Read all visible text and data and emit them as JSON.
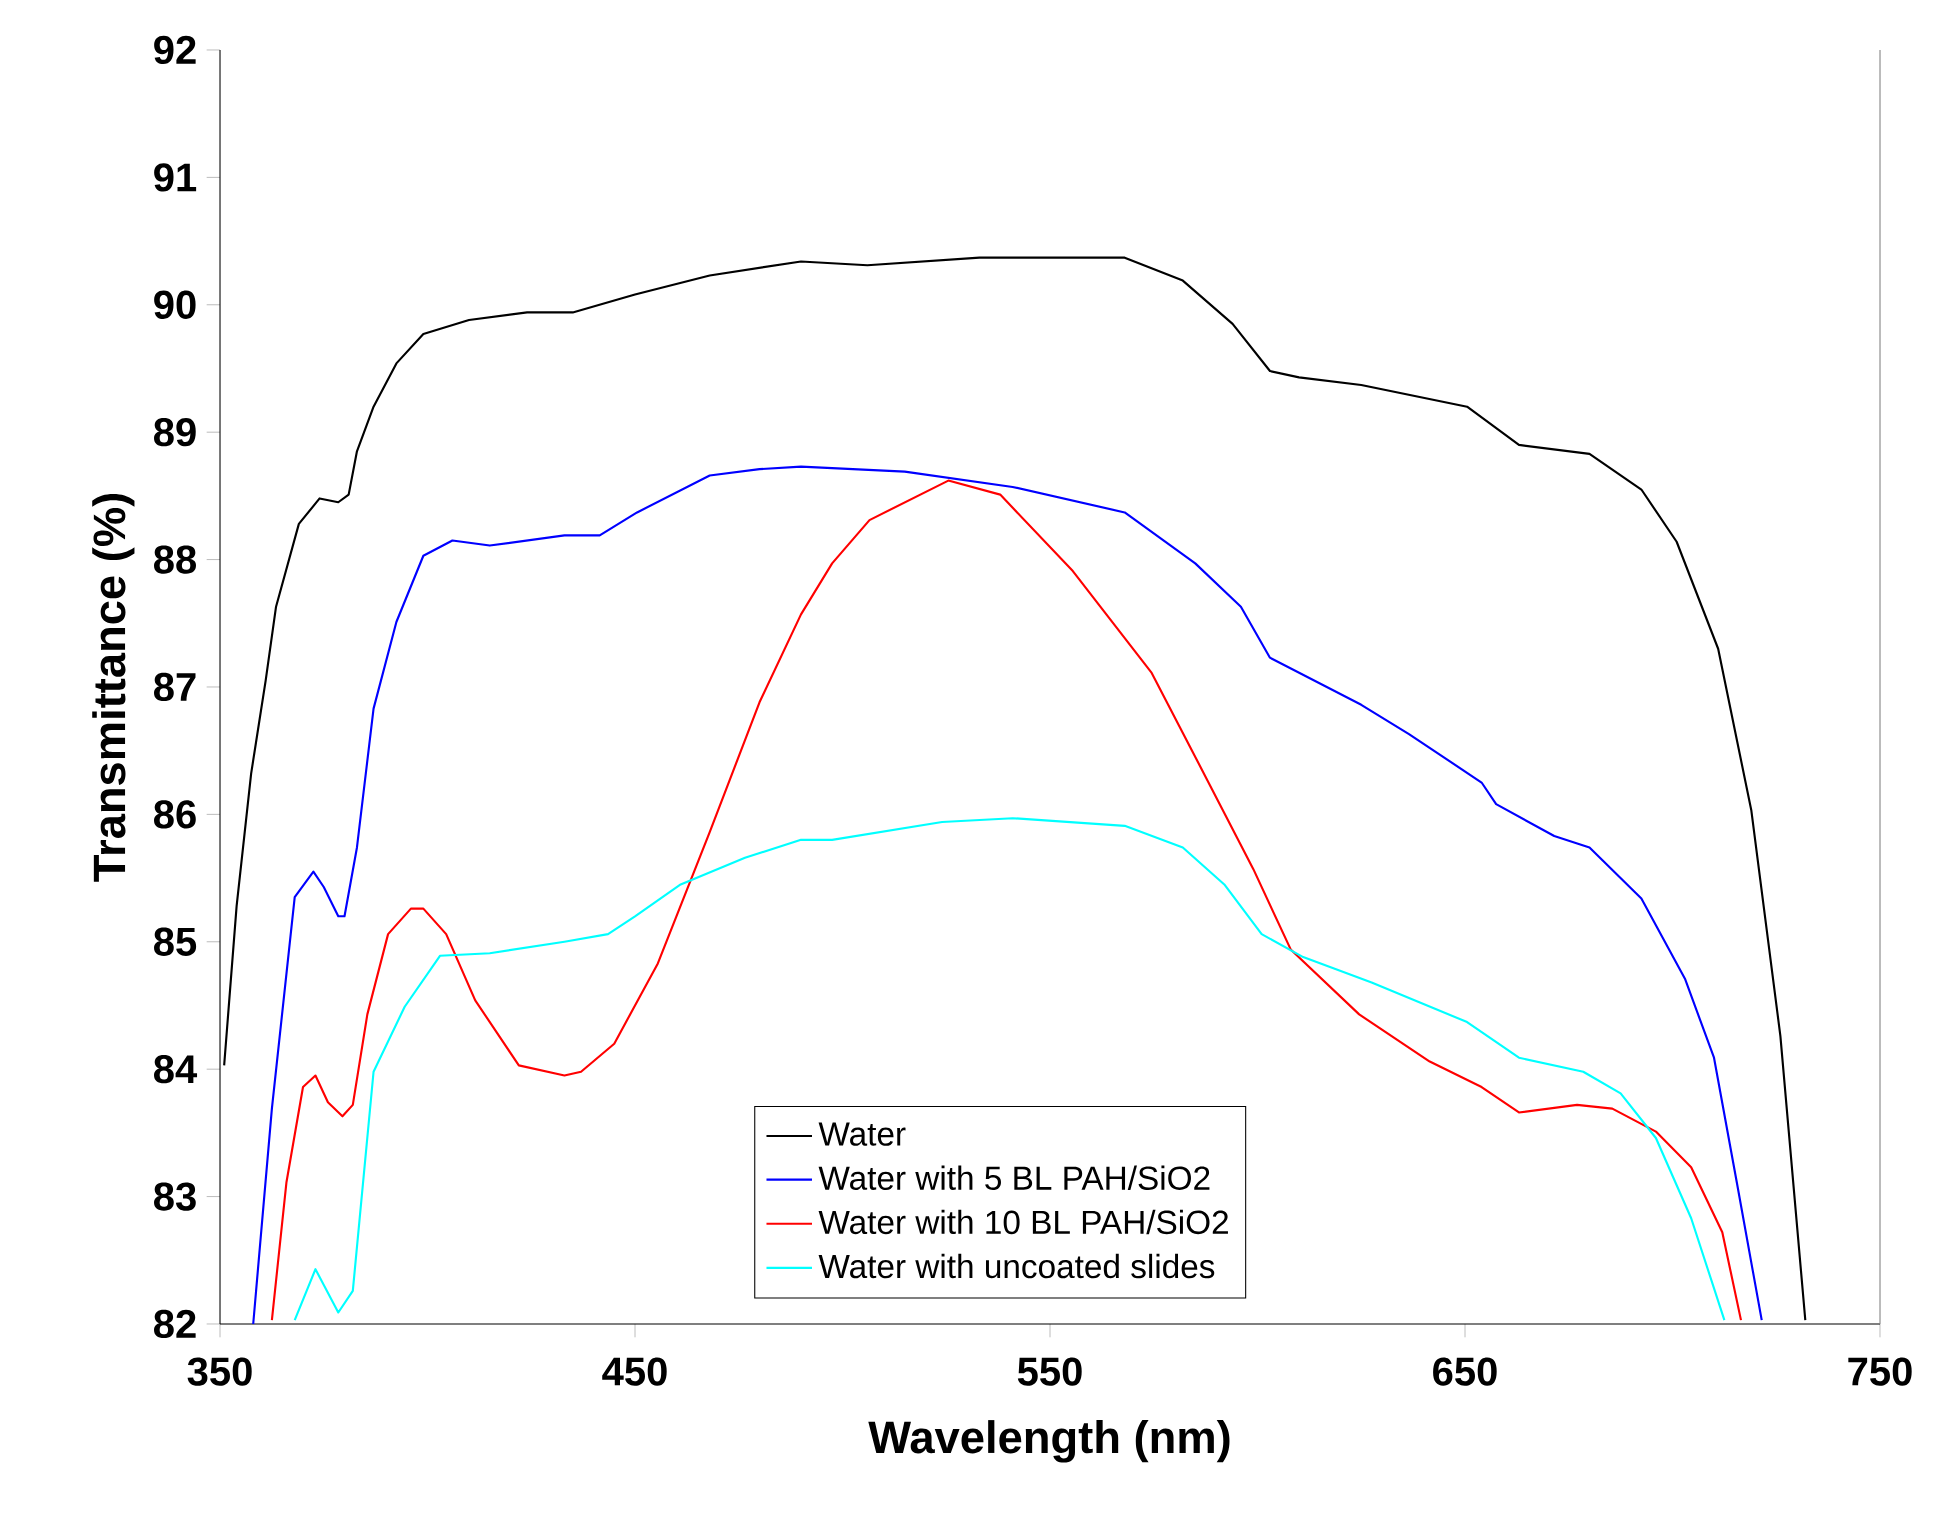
{
  "chart_data": {
    "type": "line",
    "xlabel": "Wavelength (nm)",
    "ylabel": "Transmittance (%)",
    "xlim": [
      350,
      750
    ],
    "xticks": [
      350,
      450,
      550,
      650,
      750
    ],
    "ylim": [
      82,
      92
    ],
    "yticks": [
      82,
      83,
      84,
      85,
      86,
      87,
      88,
      89,
      90,
      91,
      92
    ],
    "legend": "bottom",
    "grid": false,
    "series": [
      {
        "name": "Water",
        "color": "#000000",
        "x": [
          351,
          354,
          357.5,
          361,
          363.5,
          369,
          374,
          378.5,
          381,
          383,
          387,
          392.5,
          399,
          410,
          424,
          435,
          450,
          468,
          490,
          506,
          533,
          568,
          582,
          594,
          603,
          610,
          625,
          650.5,
          663,
          680,
          692.5,
          701,
          711,
          719,
          726,
          732
        ],
        "values": [
          84.03,
          85.28,
          86.32,
          87.05,
          87.63,
          88.28,
          88.48,
          88.45,
          88.51,
          88.85,
          89.2,
          89.54,
          89.77,
          89.88,
          89.94,
          89.94,
          90.08,
          90.23,
          90.34,
          90.31,
          90.37,
          90.37,
          90.19,
          89.85,
          89.48,
          89.43,
          89.37,
          89.2,
          88.9,
          88.83,
          88.55,
          88.14,
          87.3,
          86.03,
          84.26,
          82.03
        ]
      },
      {
        "name": "Water with 5 BL PAH/SiO2",
        "color": "#0000ff",
        "x": [
          358,
          362.5,
          368,
          372.5,
          375,
          378.5,
          380,
          383,
          387,
          392.5,
          399,
          406,
          415,
          433,
          441.5,
          450.5,
          468,
          480,
          490,
          515,
          541,
          568,
          585,
          596,
          603,
          625,
          636.5,
          654,
          657.5,
          671.5,
          680,
          692.5,
          703,
          710,
          715.5,
          721.5
        ],
        "values": [
          82.0,
          83.69,
          85.35,
          85.55,
          85.43,
          85.2,
          85.2,
          85.74,
          86.83,
          87.51,
          88.03,
          88.15,
          88.11,
          88.19,
          88.19,
          88.37,
          88.66,
          88.71,
          88.73,
          88.69,
          88.57,
          88.37,
          87.97,
          87.63,
          87.23,
          86.86,
          86.63,
          86.25,
          86.08,
          85.83,
          85.74,
          85.34,
          84.71,
          84.09,
          83.11,
          82.03
        ]
      },
      {
        "name": "Water with 10 BL PAH/SiO2",
        "color": "#ff0000",
        "x": [
          362.5,
          366,
          370,
          373,
          376,
          379.5,
          382,
          385.5,
          390.5,
          396,
          399,
          404.5,
          411.5,
          422,
          433,
          437,
          445,
          455.5,
          468,
          480,
          490,
          497.5,
          506.5,
          525.5,
          538,
          555.5,
          574.5,
          589,
          599,
          608,
          624.5,
          641.5,
          654,
          663,
          677,
          685.5,
          696,
          704.5,
          712,
          716.5
        ],
        "values": [
          82.03,
          83.11,
          83.86,
          83.95,
          83.74,
          83.63,
          83.72,
          84.43,
          85.06,
          85.26,
          85.26,
          85.06,
          84.54,
          84.03,
          83.95,
          83.98,
          84.2,
          84.83,
          85.86,
          86.88,
          87.57,
          87.97,
          88.31,
          88.62,
          88.51,
          87.91,
          87.11,
          86.2,
          85.57,
          84.94,
          84.43,
          84.06,
          83.86,
          83.66,
          83.72,
          83.69,
          83.51,
          83.23,
          82.72,
          82.03
        ]
      },
      {
        "name": "Water with uncoated slides",
        "color": "#00ffff",
        "x": [
          368,
          373,
          378.5,
          382,
          387,
          394.5,
          403,
          415,
          433,
          443.5,
          450,
          461,
          476.5,
          490,
          497.5,
          524,
          541,
          568,
          582,
          592,
          601,
          611,
          627.5,
          650.5,
          663,
          678.5,
          687.5,
          696,
          704.5,
          712.5
        ],
        "values": [
          82.03,
          82.43,
          82.09,
          82.26,
          83.98,
          84.49,
          84.89,
          84.91,
          85.0,
          85.06,
          85.2,
          85.45,
          85.66,
          85.8,
          85.8,
          85.94,
          85.97,
          85.91,
          85.74,
          85.45,
          85.06,
          84.88,
          84.68,
          84.37,
          84.09,
          83.98,
          83.81,
          83.46,
          82.83,
          82.03
        ]
      }
    ]
  }
}
